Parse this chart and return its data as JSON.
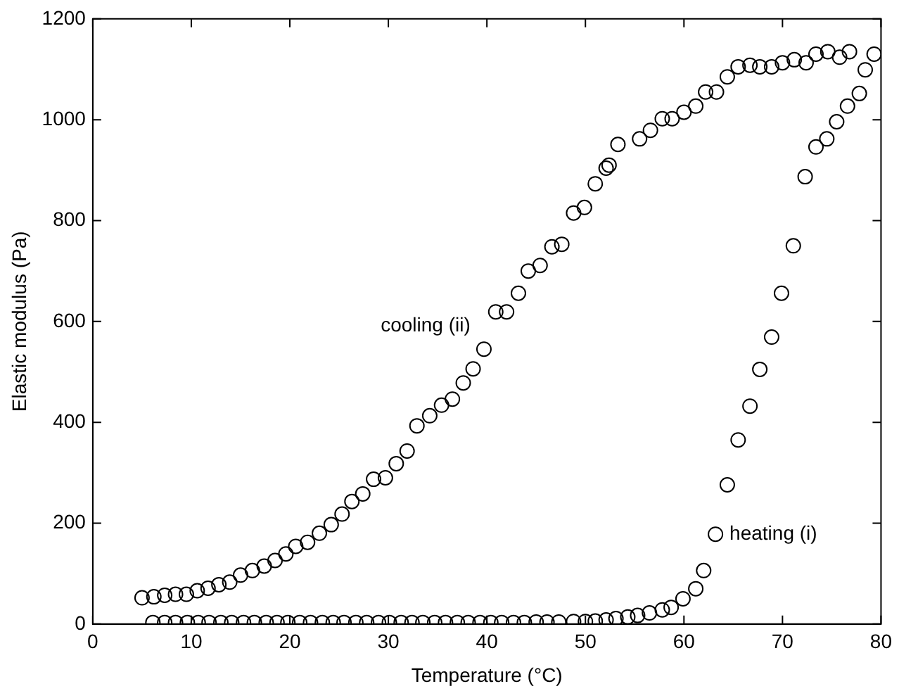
{
  "chart_data": {
    "type": "scatter",
    "xlabel": "Temperature (°C)",
    "ylabel": "Elastic modulus (Pa)",
    "xlim": [
      0,
      80
    ],
    "ylim": [
      0,
      1200
    ],
    "xticks": [
      0,
      10,
      20,
      30,
      40,
      50,
      60,
      70,
      80
    ],
    "yticks": [
      0,
      200,
      400,
      600,
      800,
      1000,
      1200
    ],
    "grid": false,
    "legend": false,
    "marker": "circle",
    "series": [
      {
        "name": "cooling (ii)",
        "color": "#000000",
        "x": [
          5.0,
          6.2,
          7.3,
          8.4,
          9.5,
          10.6,
          11.7,
          12.8,
          13.9,
          15.0,
          16.2,
          17.4,
          18.5,
          19.6,
          20.6,
          21.8,
          23.0,
          24.2,
          25.3,
          26.3,
          27.4,
          28.5,
          29.7,
          30.8,
          31.9,
          32.9,
          34.2,
          35.4,
          36.5,
          37.6,
          38.6,
          39.7,
          40.9,
          42.0,
          43.2,
          44.2,
          45.4,
          46.6,
          47.6,
          48.8,
          49.9,
          51.0,
          52.1,
          52.4,
          53.3,
          55.5,
          56.6,
          57.8,
          58.8,
          60.0,
          61.2,
          62.2,
          63.3,
          64.4,
          65.5,
          66.7,
          67.7,
          68.9,
          70.0,
          71.2,
          72.4,
          73.4,
          74.6,
          75.8,
          76.8
        ],
        "values": [
          52,
          54,
          57,
          59,
          59,
          66,
          71,
          78,
          83,
          97,
          106,
          115,
          126,
          139,
          154,
          162,
          180,
          197,
          218,
          243,
          258,
          287,
          290,
          318,
          343,
          393,
          413,
          434,
          446,
          478,
          506,
          545,
          619,
          619,
          656,
          700,
          711,
          748,
          753,
          815,
          826,
          873,
          904,
          910,
          951,
          962,
          979,
          1002,
          1002,
          1015,
          1027,
          1055,
          1055,
          1085,
          1105,
          1108,
          1105,
          1105,
          1113,
          1119,
          1113,
          1130,
          1135,
          1124,
          1135
        ]
      },
      {
        "name": "heating (i)",
        "color": "#000000",
        "x": [
          6.1,
          7.3,
          8.4,
          9.6,
          10.7,
          11.8,
          13.0,
          14.1,
          15.3,
          16.4,
          17.6,
          18.7,
          19.8,
          21.0,
          22.1,
          23.3,
          24.4,
          25.5,
          26.7,
          27.8,
          29.0,
          30.1,
          31.3,
          32.4,
          33.5,
          34.7,
          35.8,
          37.0,
          38.1,
          39.3,
          40.4,
          41.5,
          42.7,
          43.8,
          45.0,
          46.1,
          47.3,
          48.8,
          50.0,
          51.0,
          52.1,
          53.1,
          54.3,
          55.3,
          56.5,
          57.8,
          58.7,
          59.9,
          61.2,
          62.0,
          63.2,
          64.4,
          65.5,
          66.7,
          67.7,
          68.9,
          69.9,
          71.1,
          72.3,
          73.4,
          74.5,
          75.5,
          76.6,
          77.8,
          78.4,
          79.3
        ],
        "values": [
          3,
          3,
          3,
          3,
          3,
          3,
          3,
          3,
          3,
          3,
          3,
          3,
          3,
          3,
          3,
          3,
          3,
          3,
          3,
          3,
          3,
          3,
          3,
          3,
          3,
          3,
          3,
          3,
          3,
          3,
          3,
          3,
          3,
          3,
          4,
          4,
          4,
          5,
          5,
          6,
          8,
          11,
          14,
          17,
          22,
          28,
          33,
          50,
          70,
          106,
          178,
          276,
          365,
          432,
          505,
          569,
          656,
          750,
          887,
          946,
          962,
          996,
          1027,
          1052,
          1099,
          1130
        ]
      }
    ]
  }
}
